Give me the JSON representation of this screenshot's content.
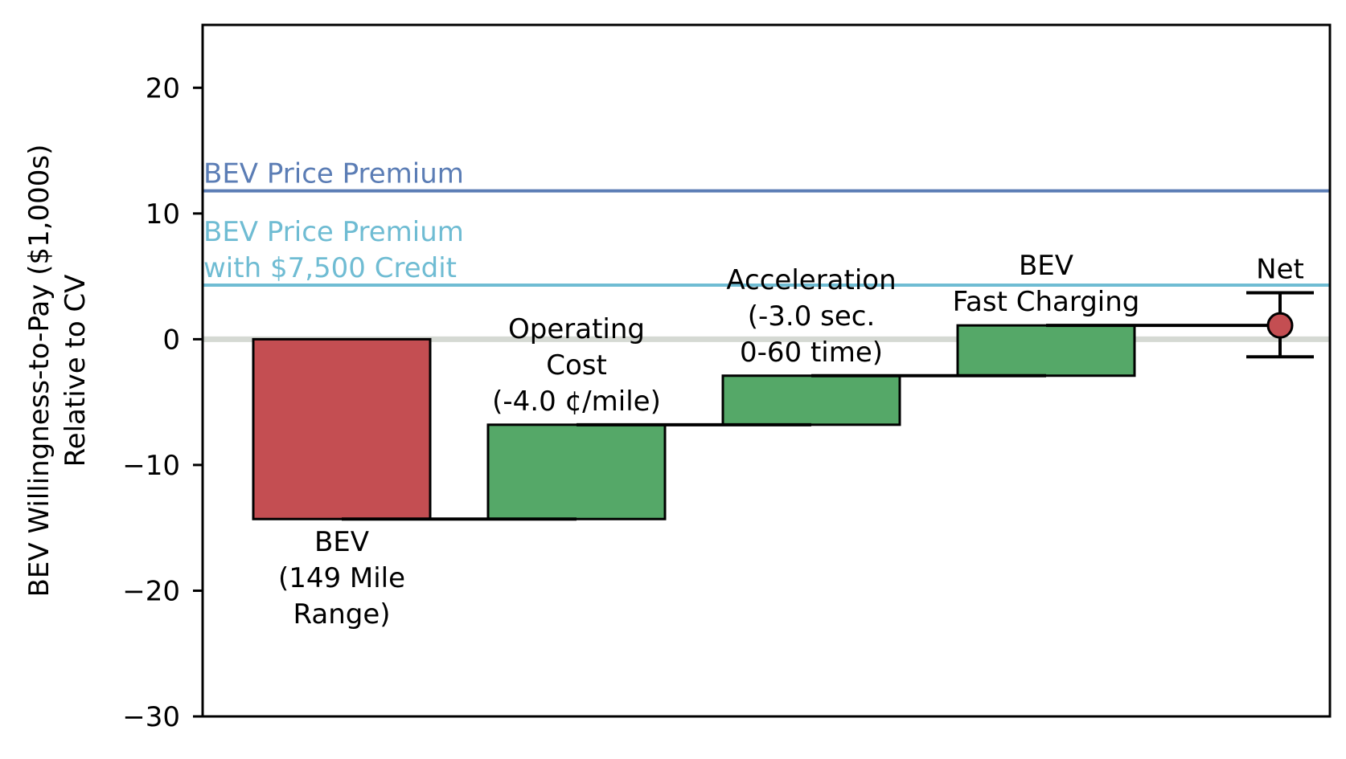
{
  "chart_data": {
    "type": "bar",
    "subtype": "waterfall",
    "ylabel_lines": [
      "BEV Willingness-to-Pay ($1,000s)",
      "Relative to CV"
    ],
    "ylim": [
      -30,
      25
    ],
    "yticks": [
      {
        "value": 20,
        "label": "20"
      },
      {
        "value": 10,
        "label": "10"
      },
      {
        "value": 0,
        "label": "0"
      },
      {
        "value": -10,
        "label": "−10"
      },
      {
        "value": -20,
        "label": "−20"
      },
      {
        "value": -30,
        "label": "−30"
      }
    ],
    "grid": false,
    "zero_line": true,
    "reference_lines": [
      {
        "value": 11.8,
        "label_lines": [
          "BEV Price Premium"
        ],
        "color": "#5b7db5"
      },
      {
        "value": 4.3,
        "label_lines": [
          "BEV Price Premium",
          "with $7,500 Credit"
        ],
        "color": "#6fbcd3"
      }
    ],
    "bars": [
      {
        "label_lines": [
          "BEV",
          "(149 Mile",
          "Range)"
        ],
        "start": 0,
        "end": -14.3,
        "color": "#c44e52",
        "label_position": "below"
      },
      {
        "label_lines": [
          "Operating",
          "Cost",
          "(-4.0 ¢/mile)"
        ],
        "start": -14.3,
        "end": -6.8,
        "color": "#55a868",
        "label_position": "above"
      },
      {
        "label_lines": [
          "Acceleration",
          "(-3.0 sec.",
          "0-60 time)"
        ],
        "start": -6.8,
        "end": -2.9,
        "color": "#55a868",
        "label_position": "above"
      },
      {
        "label_lines": [
          "BEV",
          "Fast Charging"
        ],
        "start": -2.9,
        "end": 1.1,
        "color": "#55a868",
        "label_position": "above"
      }
    ],
    "net": {
      "label": "Net",
      "value": 1.1,
      "error_low": -1.4,
      "error_high": 3.7,
      "color": "#c44e52"
    }
  }
}
